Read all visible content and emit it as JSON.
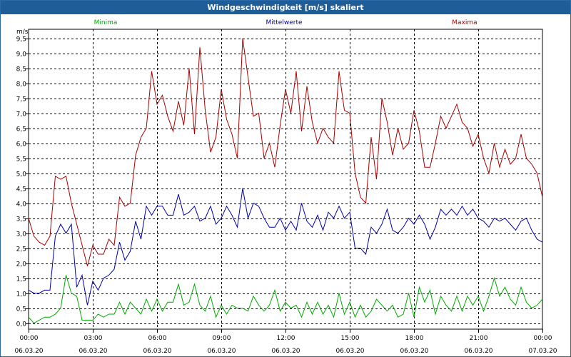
{
  "window": {
    "title": "Windgeschwindigkeit [m/s] skaliert"
  },
  "chart_data": {
    "type": "line",
    "title": "Windgeschwindigkeit [m/s] skaliert",
    "ylabel": "m/s",
    "xlabel": "",
    "ylim": [
      -0.2,
      9.8
    ],
    "xlim_hours": [
      0,
      24
    ],
    "grid": true,
    "legend_placement": "top",
    "y_ticks": [
      "0,0",
      "0,5",
      "1,0",
      "1,5",
      "2,0",
      "2,5",
      "3,0",
      "3,5",
      "4,0",
      "4,5",
      "5,0",
      "5,5",
      "6,0",
      "6,5",
      "7,0",
      "7,5",
      "8,0",
      "8,5",
      "9,0",
      "9,5"
    ],
    "x_ticks": [
      {
        "time": "00:00",
        "date": "06.03.20"
      },
      {
        "time": "03:00",
        "date": "06.03.20"
      },
      {
        "time": "06:00",
        "date": "06.03.20"
      },
      {
        "time": "09:00",
        "date": "06.03.20"
      },
      {
        "time": "12:00",
        "date": "06.03.20"
      },
      {
        "time": "15:00",
        "date": "06.03.20"
      },
      {
        "time": "18:00",
        "date": "06.03.20"
      },
      {
        "time": "21:00",
        "date": "06.03.20"
      },
      {
        "time": "00:00",
        "date": "07.03.20"
      }
    ],
    "series": [
      {
        "name": "Minima",
        "color": "#00aa00",
        "points": [
          [
            0.0,
            0.2
          ],
          [
            0.25,
            0.0
          ],
          [
            0.5,
            0.1
          ],
          [
            0.75,
            0.2
          ],
          [
            1.0,
            0.2
          ],
          [
            1.25,
            0.3
          ],
          [
            1.5,
            0.5
          ],
          [
            1.75,
            1.6
          ],
          [
            2.0,
            1.0
          ],
          [
            2.25,
            0.9
          ],
          [
            2.5,
            0.1
          ],
          [
            2.75,
            0.1
          ],
          [
            3.0,
            0.1
          ],
          [
            3.25,
            0.3
          ],
          [
            3.5,
            0.2
          ],
          [
            3.75,
            0.3
          ],
          [
            4.0,
            0.3
          ],
          [
            4.25,
            0.7
          ],
          [
            4.5,
            0.3
          ],
          [
            4.75,
            0.7
          ],
          [
            5.0,
            0.5
          ],
          [
            5.25,
            0.3
          ],
          [
            5.5,
            0.8
          ],
          [
            5.75,
            0.4
          ],
          [
            6.0,
            0.8
          ],
          [
            6.25,
            0.4
          ],
          [
            6.5,
            0.7
          ],
          [
            6.75,
            0.7
          ],
          [
            7.0,
            1.3
          ],
          [
            7.25,
            0.6
          ],
          [
            7.5,
            0.7
          ],
          [
            7.75,
            1.3
          ],
          [
            8.0,
            0.6
          ],
          [
            8.25,
            0.4
          ],
          [
            8.5,
            0.9
          ],
          [
            8.75,
            0.2
          ],
          [
            9.0,
            0.6
          ],
          [
            9.25,
            0.3
          ],
          [
            9.5,
            0.6
          ],
          [
            9.75,
            0.5
          ],
          [
            10.0,
            0.5
          ],
          [
            10.25,
            0.4
          ],
          [
            10.5,
            0.9
          ],
          [
            10.75,
            0.6
          ],
          [
            11.0,
            0.4
          ],
          [
            11.25,
            0.6
          ],
          [
            11.5,
            1.1
          ],
          [
            11.75,
            0.4
          ],
          [
            12.0,
            0.7
          ],
          [
            12.25,
            0.5
          ],
          [
            12.5,
            0.6
          ],
          [
            12.75,
            0.2
          ],
          [
            13.0,
            0.7
          ],
          [
            13.25,
            0.3
          ],
          [
            13.5,
            0.7
          ],
          [
            13.75,
            0.3
          ],
          [
            14.0,
            0.6
          ],
          [
            14.25,
            0.2
          ],
          [
            14.5,
            1.0
          ],
          [
            14.75,
            0.3
          ],
          [
            15.0,
            0.7
          ],
          [
            15.25,
            0.2
          ],
          [
            15.5,
            0.6
          ],
          [
            15.75,
            0.2
          ],
          [
            16.0,
            0.4
          ],
          [
            16.25,
            0.8
          ],
          [
            16.5,
            0.6
          ],
          [
            16.75,
            0.4
          ],
          [
            17.0,
            0.6
          ],
          [
            17.25,
            0.2
          ],
          [
            17.5,
            0.3
          ],
          [
            17.75,
            1.0
          ],
          [
            18.0,
            0.2
          ],
          [
            18.25,
            1.2
          ],
          [
            18.5,
            0.7
          ],
          [
            18.75,
            1.1
          ],
          [
            19.0,
            0.3
          ],
          [
            19.25,
            0.9
          ],
          [
            19.5,
            0.6
          ],
          [
            19.75,
            0.4
          ],
          [
            20.0,
            0.9
          ],
          [
            20.25,
            0.4
          ],
          [
            20.5,
            0.9
          ],
          [
            20.75,
            0.6
          ],
          [
            21.0,
            0.9
          ],
          [
            21.25,
            0.4
          ],
          [
            21.5,
            0.9
          ],
          [
            21.75,
            1.5
          ],
          [
            22.0,
            0.9
          ],
          [
            22.25,
            1.2
          ],
          [
            22.5,
            0.8
          ],
          [
            22.75,
            0.6
          ],
          [
            23.0,
            1.2
          ],
          [
            23.25,
            0.7
          ],
          [
            23.5,
            0.5
          ],
          [
            23.75,
            0.6
          ],
          [
            24.0,
            0.8
          ]
        ]
      },
      {
        "name": "Mittelwerte",
        "color": "#0000aa",
        "points": [
          [
            0.0,
            1.1
          ],
          [
            0.25,
            1.0
          ],
          [
            0.5,
            1.0
          ],
          [
            0.75,
            1.1
          ],
          [
            1.0,
            1.1
          ],
          [
            1.25,
            2.9
          ],
          [
            1.5,
            3.3
          ],
          [
            1.75,
            3.0
          ],
          [
            2.0,
            3.3
          ],
          [
            2.25,
            1.2
          ],
          [
            2.5,
            1.6
          ],
          [
            2.75,
            0.6
          ],
          [
            3.0,
            1.4
          ],
          [
            3.25,
            1.1
          ],
          [
            3.5,
            1.5
          ],
          [
            3.75,
            1.6
          ],
          [
            4.0,
            1.8
          ],
          [
            4.25,
            2.7
          ],
          [
            4.5,
            2.1
          ],
          [
            4.75,
            2.4
          ],
          [
            5.0,
            3.4
          ],
          [
            5.25,
            2.8
          ],
          [
            5.5,
            3.9
          ],
          [
            5.75,
            3.6
          ],
          [
            6.0,
            3.9
          ],
          [
            6.25,
            3.9
          ],
          [
            6.5,
            3.6
          ],
          [
            6.75,
            3.6
          ],
          [
            7.0,
            4.3
          ],
          [
            7.25,
            3.6
          ],
          [
            7.5,
            3.7
          ],
          [
            7.75,
            3.9
          ],
          [
            8.0,
            3.4
          ],
          [
            8.25,
            3.5
          ],
          [
            8.5,
            3.9
          ],
          [
            8.75,
            3.3
          ],
          [
            9.0,
            3.5
          ],
          [
            9.25,
            3.9
          ],
          [
            9.5,
            3.6
          ],
          [
            9.75,
            3.2
          ],
          [
            10.0,
            4.5
          ],
          [
            10.25,
            3.5
          ],
          [
            10.5,
            4.0
          ],
          [
            10.75,
            3.9
          ],
          [
            11.0,
            3.5
          ],
          [
            11.25,
            3.2
          ],
          [
            11.5,
            3.2
          ],
          [
            11.75,
            3.5
          ],
          [
            12.0,
            3.1
          ],
          [
            12.25,
            3.4
          ],
          [
            12.5,
            3.1
          ],
          [
            12.75,
            4.0
          ],
          [
            13.0,
            3.4
          ],
          [
            13.25,
            3.2
          ],
          [
            13.5,
            3.6
          ],
          [
            13.75,
            3.1
          ],
          [
            14.0,
            3.7
          ],
          [
            14.25,
            3.5
          ],
          [
            14.5,
            3.9
          ],
          [
            14.75,
            3.5
          ],
          [
            15.0,
            3.7
          ],
          [
            15.25,
            2.5
          ],
          [
            15.5,
            2.5
          ],
          [
            15.75,
            2.3
          ],
          [
            16.0,
            3.2
          ],
          [
            16.25,
            3.0
          ],
          [
            16.5,
            3.3
          ],
          [
            16.75,
            3.8
          ],
          [
            17.0,
            3.1
          ],
          [
            17.25,
            3.0
          ],
          [
            17.5,
            3.2
          ],
          [
            17.75,
            3.5
          ],
          [
            18.0,
            3.3
          ],
          [
            18.25,
            3.6
          ],
          [
            18.5,
            3.3
          ],
          [
            18.75,
            2.8
          ],
          [
            19.0,
            3.2
          ],
          [
            19.25,
            3.8
          ],
          [
            19.5,
            3.6
          ],
          [
            19.75,
            3.8
          ],
          [
            20.0,
            3.6
          ],
          [
            20.25,
            3.9
          ],
          [
            20.5,
            3.6
          ],
          [
            20.75,
            3.8
          ],
          [
            21.0,
            3.5
          ],
          [
            21.25,
            3.4
          ],
          [
            21.5,
            3.2
          ],
          [
            21.75,
            3.5
          ],
          [
            22.0,
            3.4
          ],
          [
            22.25,
            3.5
          ],
          [
            22.5,
            3.3
          ],
          [
            22.75,
            3.1
          ],
          [
            23.0,
            3.4
          ],
          [
            23.25,
            3.5
          ],
          [
            23.5,
            3.1
          ],
          [
            23.75,
            2.8
          ],
          [
            24.0,
            2.7
          ]
        ]
      },
      {
        "name": "Maxima",
        "color": "#aa0000",
        "points": [
          [
            0.0,
            3.5
          ],
          [
            0.25,
            2.9
          ],
          [
            0.5,
            2.7
          ],
          [
            0.75,
            2.6
          ],
          [
            1.0,
            2.9
          ],
          [
            1.25,
            4.9
          ],
          [
            1.5,
            4.8
          ],
          [
            1.75,
            4.9
          ],
          [
            2.0,
            4.0
          ],
          [
            2.25,
            3.3
          ],
          [
            2.5,
            2.6
          ],
          [
            2.75,
            1.9
          ],
          [
            3.0,
            2.6
          ],
          [
            3.25,
            2.3
          ],
          [
            3.5,
            2.3
          ],
          [
            3.75,
            2.8
          ],
          [
            4.0,
            2.6
          ],
          [
            4.25,
            4.2
          ],
          [
            4.5,
            3.9
          ],
          [
            4.75,
            4.0
          ],
          [
            5.0,
            5.6
          ],
          [
            5.25,
            6.2
          ],
          [
            5.5,
            6.5
          ],
          [
            5.75,
            8.4
          ],
          [
            6.0,
            7.3
          ],
          [
            6.25,
            7.6
          ],
          [
            6.5,
            6.9
          ],
          [
            6.75,
            6.4
          ],
          [
            7.0,
            7.4
          ],
          [
            7.25,
            6.6
          ],
          [
            7.5,
            8.5
          ],
          [
            7.75,
            6.3
          ],
          [
            8.0,
            9.2
          ],
          [
            8.25,
            7.1
          ],
          [
            8.5,
            5.7
          ],
          [
            8.75,
            6.2
          ],
          [
            9.0,
            7.8
          ],
          [
            9.25,
            6.8
          ],
          [
            9.5,
            6.3
          ],
          [
            9.75,
            5.5
          ],
          [
            10.0,
            9.5
          ],
          [
            10.25,
            8.2
          ],
          [
            10.5,
            6.9
          ],
          [
            10.75,
            7.0
          ],
          [
            11.0,
            5.5
          ],
          [
            11.25,
            6.0
          ],
          [
            11.5,
            5.2
          ],
          [
            11.75,
            6.6
          ],
          [
            12.0,
            7.8
          ],
          [
            12.25,
            7.0
          ],
          [
            12.5,
            8.4
          ],
          [
            12.75,
            6.4
          ],
          [
            13.0,
            7.9
          ],
          [
            13.25,
            6.7
          ],
          [
            13.5,
            6.0
          ],
          [
            13.75,
            6.5
          ],
          [
            14.0,
            6.2
          ],
          [
            14.25,
            6.0
          ],
          [
            14.5,
            8.4
          ],
          [
            14.75,
            7.1
          ],
          [
            15.0,
            7.0
          ],
          [
            15.25,
            5.0
          ],
          [
            15.5,
            4.2
          ],
          [
            15.75,
            4.0
          ],
          [
            16.0,
            6.2
          ],
          [
            16.25,
            4.8
          ],
          [
            16.5,
            7.5
          ],
          [
            16.75,
            6.7
          ],
          [
            17.0,
            5.6
          ],
          [
            17.25,
            6.5
          ],
          [
            17.5,
            5.8
          ],
          [
            17.75,
            6.0
          ],
          [
            18.0,
            7.1
          ],
          [
            18.25,
            6.4
          ],
          [
            18.5,
            5.2
          ],
          [
            18.75,
            5.2
          ],
          [
            19.0,
            6.0
          ],
          [
            19.25,
            6.9
          ],
          [
            19.5,
            6.5
          ],
          [
            19.75,
            6.9
          ],
          [
            20.0,
            7.3
          ],
          [
            20.25,
            6.7
          ],
          [
            20.5,
            6.5
          ],
          [
            20.75,
            5.9
          ],
          [
            21.0,
            6.3
          ],
          [
            21.25,
            5.5
          ],
          [
            21.5,
            5.0
          ],
          [
            21.75,
            6.0
          ],
          [
            22.0,
            5.2
          ],
          [
            22.25,
            5.8
          ],
          [
            22.5,
            5.3
          ],
          [
            22.75,
            5.5
          ],
          [
            23.0,
            6.3
          ],
          [
            23.25,
            5.5
          ],
          [
            23.5,
            5.3
          ],
          [
            23.75,
            5.0
          ],
          [
            24.0,
            4.2
          ]
        ]
      }
    ]
  }
}
